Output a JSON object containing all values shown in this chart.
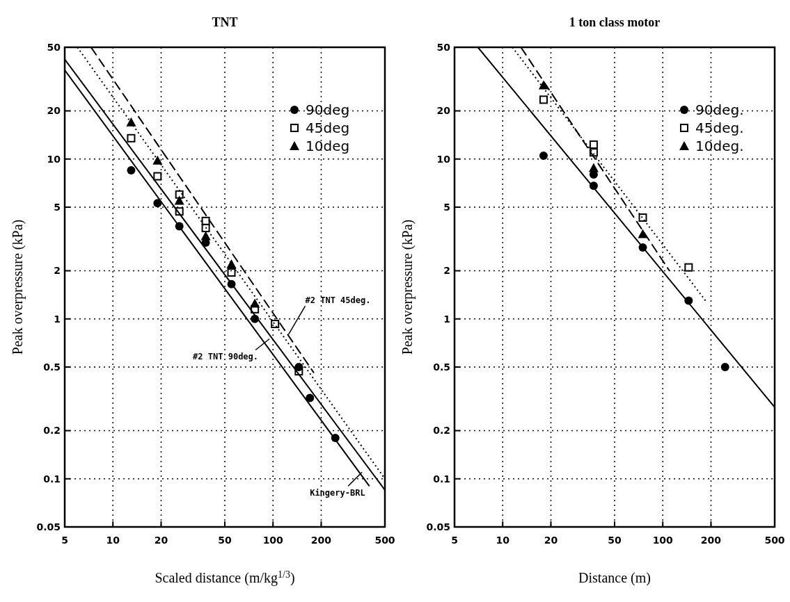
{
  "chart_data": [
    {
      "type": "scatter",
      "title": "TNT",
      "xlabel": "Scaled distance (m/kg$^{1/3}$)",
      "ylabel": "Peak overpressure   (kPa)",
      "log": "xy",
      "grid": true,
      "legend": "top right",
      "xlim": [
        5,
        500
      ],
      "ylim": [
        0.05,
        50
      ],
      "xticks": [
        5,
        10,
        20,
        50,
        100,
        200,
        500
      ],
      "yticks": [
        0.05,
        0.1,
        0.2,
        0.5,
        1,
        2,
        5,
        10,
        20,
        50
      ],
      "series": [
        {
          "name": "90deg",
          "color": "#000000",
          "marker": "circle",
          "x": [
            13,
            19,
            26,
            38,
            55,
            77,
            145,
            170,
            245
          ],
          "values": [
            8.5,
            5.3,
            3.8,
            3.0,
            1.65,
            1.0,
            0.5,
            0.32,
            0.18
          ]
        },
        {
          "name": "45deg",
          "color": "#000000",
          "marker": "square",
          "x": [
            13,
            19,
            26,
            26,
            38,
            38,
            55,
            77,
            103,
            145
          ],
          "values": [
            13.5,
            7.8,
            6.0,
            4.7,
            4.1,
            3.7,
            1.95,
            1.15,
            0.93,
            0.47
          ]
        },
        {
          "name": "10deg",
          "color": "#000000",
          "marker": "triangle",
          "x": [
            13,
            19,
            26,
            38,
            55,
            77
          ],
          "values": [
            17,
            9.8,
            5.5,
            3.3,
            2.2,
            1.25
          ]
        },
        {
          "type": "line",
          "color": "#000000",
          "line_style": "solid",
          "x": [
            5,
            400
          ],
          "values": [
            36,
            0.09
          ]
        },
        {
          "type": "line",
          "color": "#000000",
          "line_style": "solid",
          "x": [
            5,
            500
          ],
          "values": [
            42,
            0.085
          ]
        },
        {
          "type": "line",
          "color": "#000000",
          "line_style": "dashed",
          "x": [
            7.3,
            180
          ],
          "values": [
            50,
            0.46
          ]
        },
        {
          "type": "line",
          "color": "#000000",
          "line_style": "dotted",
          "x": [
            6,
            500
          ],
          "values": [
            50,
            0.1
          ]
        }
      ],
      "annotations": [
        {
          "text": "#2 TNT 45deg.",
          "x": 125,
          "y": 0.8
        },
        {
          "text": "#2 TNT 90deg.",
          "x": 95,
          "y": 0.75
        },
        {
          "text": "Kingery-BRL",
          "x": 360,
          "y": 0.11
        }
      ]
    },
    {
      "type": "scatter",
      "title": "1 ton class motor",
      "xlabel": "Distance   (m)",
      "ylabel": "Peak overpressure   (kPa)",
      "log": "xy",
      "grid": true,
      "legend": "top right",
      "xlim": [
        5,
        500
      ],
      "ylim": [
        0.05,
        50
      ],
      "xticks": [
        5,
        10,
        20,
        50,
        100,
        200,
        500
      ],
      "yticks": [
        0.05,
        0.1,
        0.2,
        0.5,
        1,
        2,
        5,
        10,
        20,
        50
      ],
      "series": [
        {
          "name": "90deg.",
          "color": "#000000",
          "marker": "circle",
          "x": [
            18,
            37,
            37,
            75,
            145,
            245
          ],
          "values": [
            10.5,
            8,
            6.8,
            2.8,
            1.3,
            0.5
          ]
        },
        {
          "name": "45deg.",
          "color": "#000000",
          "marker": "square",
          "x": [
            18,
            37,
            37,
            75,
            145
          ],
          "values": [
            23.5,
            12.3,
            11,
            4.3,
            2.1
          ]
        },
        {
          "name": "10deg.",
          "color": "#000000",
          "marker": "triangle",
          "x": [
            18,
            37,
            75
          ],
          "values": [
            29,
            8.8,
            3.4
          ]
        },
        {
          "type": "line",
          "color": "#000000",
          "line_style": "solid",
          "x": [
            7,
            500
          ],
          "values": [
            50,
            0.28
          ]
        },
        {
          "type": "line",
          "color": "#000000",
          "line_style": "dotted",
          "x": [
            11.5,
            185
          ],
          "values": [
            50,
            1.3
          ]
        },
        {
          "type": "line",
          "color": "#000000",
          "line_style": "dashed",
          "x": [
            13,
            110
          ],
          "values": [
            50,
            2.0
          ]
        }
      ]
    }
  ]
}
